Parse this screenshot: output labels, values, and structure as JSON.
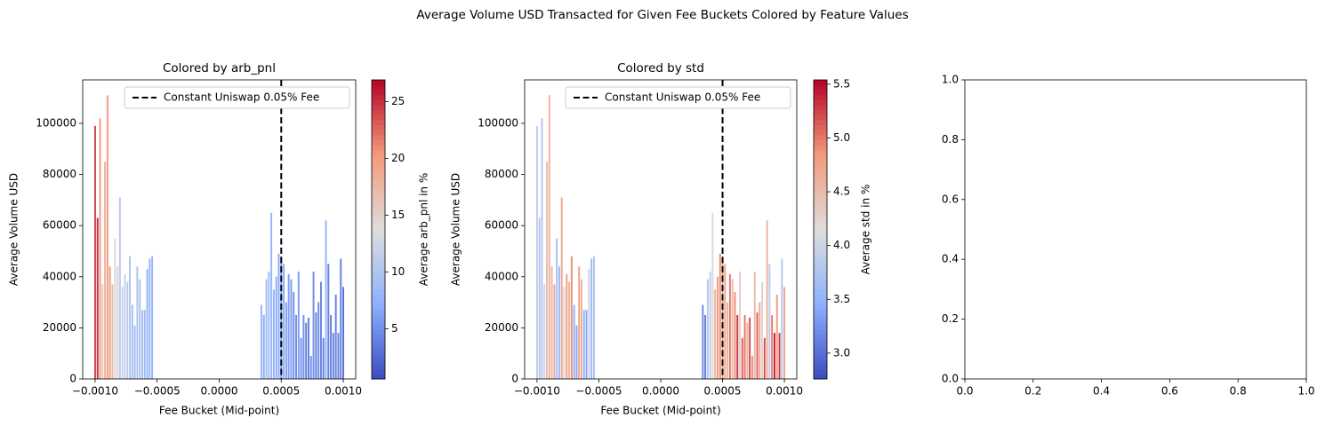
{
  "title": "Average Volume USD Transacted for Given Fee Buckets Colored by Feature Values",
  "chart_data": [
    {
      "type": "bar",
      "title": "Colored by arb_pnl",
      "xlabel": "Fee Bucket (Mid-point)",
      "ylabel": "Average Volume USD",
      "x": [
        -0.001,
        -0.00098,
        -0.00096,
        -0.00094,
        -0.00092,
        -0.0009,
        -0.00088,
        -0.00086,
        -0.00084,
        -0.00082,
        -0.0008,
        -0.00078,
        -0.00076,
        -0.00074,
        -0.00072,
        -0.0007,
        -0.00068,
        -0.00066,
        -0.00064,
        -0.00062,
        -0.0006,
        -0.00058,
        -0.00056,
        -0.00054,
        0.00034,
        0.00036,
        0.00038,
        0.0004,
        0.00042,
        0.00044,
        0.00046,
        0.00048,
        0.0005,
        0.00052,
        0.00054,
        0.00056,
        0.00058,
        0.0006,
        0.00062,
        0.00064,
        0.00066,
        0.00068,
        0.0007,
        0.00072,
        0.00074,
        0.00076,
        0.00078,
        0.0008,
        0.00082,
        0.00084,
        0.00086,
        0.00088,
        0.0009,
        0.00092,
        0.00094,
        0.00096,
        0.00098,
        0.001
      ],
      "values": [
        99000,
        63000,
        102000,
        37000,
        85000,
        111000,
        44000,
        37000,
        55000,
        44000,
        71000,
        36000,
        41000,
        38000,
        48000,
        29000,
        21000,
        44000,
        39000,
        27000,
        27000,
        43000,
        47000,
        48000,
        29000,
        25000,
        39000,
        42000,
        65000,
        35000,
        40000,
        49000,
        48000,
        45000,
        30000,
        41000,
        39000,
        34000,
        25000,
        42000,
        16000,
        25000,
        22000,
        24000,
        9000,
        42000,
        26000,
        30000,
        38000,
        16000,
        62000,
        45000,
        25000,
        18000,
        33000,
        18000,
        47000,
        36000
      ],
      "color_values": [
        24,
        25,
        20,
        16,
        18,
        20,
        20,
        17,
        14,
        13,
        11,
        12,
        12,
        11,
        10,
        9,
        9,
        10,
        10,
        9,
        9,
        8,
        8,
        8,
        8,
        7,
        9,
        9,
        8,
        8,
        7,
        7,
        6,
        7,
        6,
        6,
        6,
        5,
        5,
        6,
        5,
        5,
        4,
        4,
        5,
        5,
        4,
        5,
        4,
        4,
        8,
        4,
        4,
        4,
        4,
        4,
        4,
        3
      ],
      "colormap": "coolwarm",
      "colorbar": {
        "label": "Average arb_pnl in %",
        "lim": [
          0.6,
          26.9
        ],
        "ticks": [
          5,
          10,
          15,
          20,
          25
        ]
      },
      "vline": {
        "x": 0.0005,
        "label": "Constant Uniswap 0.05% Fee",
        "color": "#000000"
      },
      "legend": "upper right",
      "xlim": [
        -0.0011,
        0.0011
      ],
      "ylim": [
        0,
        117000
      ],
      "xticks": [
        {
          "value": -0.001,
          "label": "−0.0010"
        },
        {
          "value": -0.0005,
          "label": "−0.0005"
        },
        {
          "value": 0,
          "label": "0.0000"
        },
        {
          "value": 0.0005,
          "label": "0.0005"
        },
        {
          "value": 0.001,
          "label": "0.0010"
        }
      ],
      "yticks": [
        0,
        20000,
        40000,
        60000,
        80000,
        100000
      ]
    },
    {
      "type": "bar",
      "title": "Colored by std",
      "xlabel": "Fee Bucket (Mid-point)",
      "ylabel": "Average Volume USD",
      "x": [
        -0.001,
        -0.00098,
        -0.00096,
        -0.00094,
        -0.00092,
        -0.0009,
        -0.00088,
        -0.00086,
        -0.00084,
        -0.00082,
        -0.0008,
        -0.00078,
        -0.00076,
        -0.00074,
        -0.00072,
        -0.0007,
        -0.00068,
        -0.00066,
        -0.00064,
        -0.00062,
        -0.0006,
        -0.00058,
        -0.00056,
        -0.00054,
        0.00034,
        0.00036,
        0.00038,
        0.0004,
        0.00042,
        0.00044,
        0.00046,
        0.00048,
        0.0005,
        0.00052,
        0.00054,
        0.00056,
        0.00058,
        0.0006,
        0.00062,
        0.00064,
        0.00066,
        0.00068,
        0.0007,
        0.00072,
        0.00074,
        0.00076,
        0.00078,
        0.0008,
        0.00082,
        0.00084,
        0.00086,
        0.00088,
        0.0009,
        0.00092,
        0.00094,
        0.00096,
        0.00098,
        0.001
      ],
      "values": [
        99000,
        63000,
        102000,
        37000,
        85000,
        111000,
        44000,
        37000,
        55000,
        44000,
        71000,
        36000,
        41000,
        38000,
        48000,
        29000,
        21000,
        44000,
        39000,
        27000,
        27000,
        43000,
        47000,
        48000,
        29000,
        25000,
        39000,
        42000,
        65000,
        35000,
        40000,
        49000,
        48000,
        45000,
        30000,
        41000,
        39000,
        34000,
        25000,
        42000,
        16000,
        25000,
        22000,
        24000,
        9000,
        42000,
        26000,
        30000,
        38000,
        16000,
        62000,
        45000,
        25000,
        18000,
        33000,
        18000,
        47000,
        36000
      ],
      "color_values": [
        3.9,
        3.8,
        3.8,
        4.0,
        4.5,
        4.6,
        4.5,
        4.7,
        3.7,
        3.6,
        4.7,
        4.2,
        4.8,
        4.6,
        4.9,
        3.5,
        3.4,
        4.8,
        4.6,
        3.5,
        3.4,
        4.0,
        3.6,
        3.7,
        3.2,
        3.1,
        3.8,
        3.9,
        4.2,
        4.6,
        4.8,
        4.9,
        4.8,
        4.7,
        4.6,
        5.0,
        4.5,
        4.9,
        5.3,
        4.3,
        5.1,
        5.0,
        4.6,
        5.2,
        4.9,
        4.5,
        5.1,
        4.7,
        4.3,
        5.2,
        4.6,
        3.9,
        5.0,
        5.4,
        4.8,
        5.3,
        3.8,
        4.7
      ],
      "colormap": "coolwarm",
      "colorbar": {
        "label": "Average std in %",
        "lim": [
          2.76,
          5.54
        ],
        "ticks": [
          {
            "value": 3,
            "label": "3.0"
          },
          {
            "value": 3.5,
            "label": "3.5"
          },
          {
            "value": 4,
            "label": "4.0"
          },
          {
            "value": 4.5,
            "label": "4.5"
          },
          {
            "value": 5,
            "label": "5.0"
          },
          {
            "value": 5.5,
            "label": "5.5"
          }
        ]
      },
      "vline": {
        "x": 0.0005,
        "label": "Constant Uniswap 0.05% Fee",
        "color": "#000000"
      },
      "legend": "upper right",
      "xlim": [
        -0.0011,
        0.0011
      ],
      "ylim": [
        0,
        117000
      ],
      "xticks": [
        {
          "value": -0.001,
          "label": "−0.0010"
        },
        {
          "value": -0.0005,
          "label": "−0.0005"
        },
        {
          "value": 0,
          "label": "0.0000"
        },
        {
          "value": 0.0005,
          "label": "0.0005"
        },
        {
          "value": 0.001,
          "label": "0.0010"
        }
      ],
      "yticks": [
        0,
        20000,
        40000,
        60000,
        80000,
        100000
      ]
    },
    {
      "type": "empty",
      "xlim": [
        0,
        1
      ],
      "ylim": [
        0,
        1
      ],
      "xticks": [
        {
          "value": 0,
          "label": "0.0"
        },
        {
          "value": 0.2,
          "label": "0.2"
        },
        {
          "value": 0.4,
          "label": "0.4"
        },
        {
          "value": 0.6,
          "label": "0.6"
        },
        {
          "value": 0.8,
          "label": "0.8"
        },
        {
          "value": 1,
          "label": "1.0"
        }
      ],
      "yticks": [
        {
          "value": 0,
          "label": "0.0"
        },
        {
          "value": 0.2,
          "label": "0.2"
        },
        {
          "value": 0.4,
          "label": "0.4"
        },
        {
          "value": 0.6,
          "label": "0.6"
        },
        {
          "value": 0.8,
          "label": "0.8"
        },
        {
          "value": 1,
          "label": "1.0"
        }
      ]
    }
  ]
}
